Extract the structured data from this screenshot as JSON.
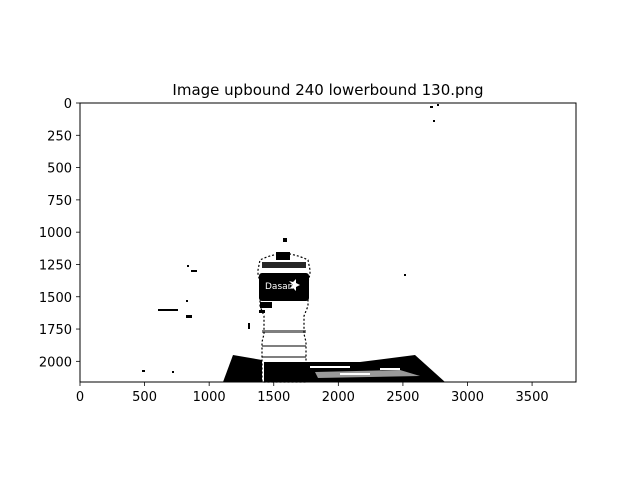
{
  "chart_data": {
    "type": "image",
    "title": "Image upbound 240 lowerbound 130.png",
    "x_ticks": [
      0,
      500,
      1000,
      1500,
      2000,
      2500,
      3000,
      3500
    ],
    "y_ticks": [
      0,
      250,
      500,
      750,
      1000,
      1250,
      1500,
      1750,
      2000
    ],
    "xlim": [
      0,
      3840
    ],
    "ylim": [
      2160,
      0
    ],
    "image_size": [
      3840,
      2160
    ],
    "y_inverted": true,
    "colormap": "binary (black on white)",
    "image_content": {
      "label_text": "Dasani"
    }
  }
}
